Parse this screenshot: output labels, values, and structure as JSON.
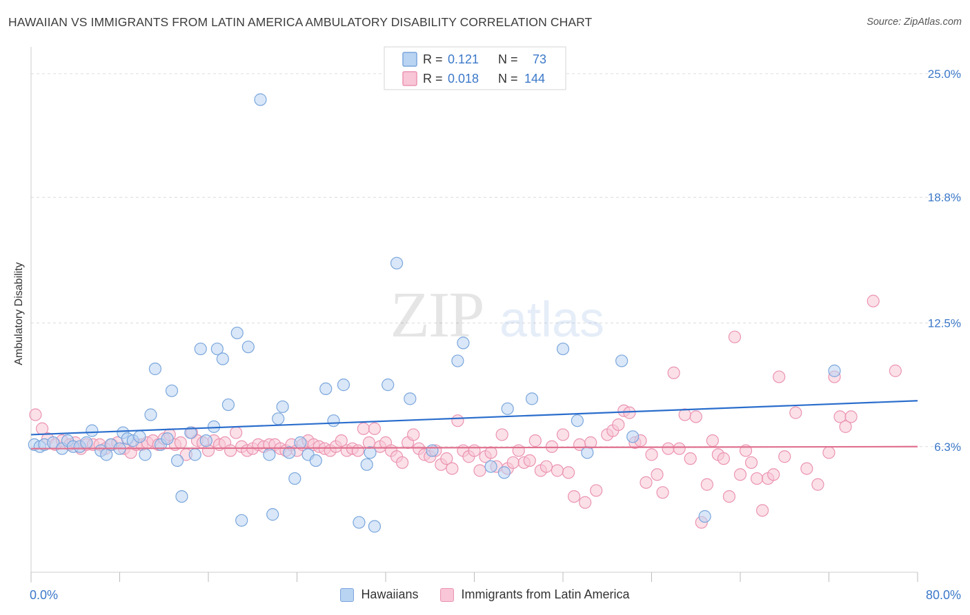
{
  "header": {
    "title": "HAWAIIAN VS IMMIGRANTS FROM LATIN AMERICA AMBULATORY DISABILITY CORRELATION CHART",
    "source": "Source: ZipAtlas.com"
  },
  "watermark": {
    "zip": "ZIP",
    "atlas": "atlas"
  },
  "colors": {
    "blue_fill": "#b9d3f2",
    "blue_stroke": "#7aa6dc",
    "blue_line": "#2a6dcc",
    "pink_fill": "#f8c6d6",
    "pink_stroke": "#eb93b0",
    "pink_line": "#e0708f",
    "axis_label": "#3b78c9",
    "grid": "#dcdcdc"
  },
  "chart_data": {
    "type": "scatter",
    "title": "HAWAIIAN VS IMMIGRANTS FROM LATIN AMERICA AMBULATORY DISABILITY CORRELATION CHART",
    "xlabel": "",
    "ylabel": "Ambulatory Disability",
    "xlim": [
      0,
      80
    ],
    "ylim": [
      0,
      26
    ],
    "x_tick_labels": [
      "0.0%",
      "80.0%"
    ],
    "y_ticks": [
      6.3,
      12.5,
      18.8,
      25.0
    ],
    "y_tick_labels": [
      "6.3%",
      "12.5%",
      "18.8%",
      "25.0%"
    ],
    "grid": "horizontal dashed",
    "legend": [
      {
        "series": "Hawaiians",
        "r_label": "R =",
        "r_value": "0.121",
        "n_label": "N =",
        "n_value": "73"
      },
      {
        "series": "Immigrants from Latin America",
        "r_label": "R =",
        "r_value": "0.018",
        "n_label": "N =",
        "n_value": "144"
      }
    ],
    "series": [
      {
        "name": "Hawaiians",
        "trend": {
          "x": [
            0,
            80
          ],
          "y": [
            6.9,
            8.6
          ]
        },
        "points": [
          [
            0.3,
            6.4
          ],
          [
            0.8,
            6.3
          ],
          [
            1.2,
            6.4
          ],
          [
            2,
            6.5
          ],
          [
            2.8,
            6.2
          ],
          [
            3.3,
            6.6
          ],
          [
            3.8,
            6.3
          ],
          [
            4.4,
            6.3
          ],
          [
            5,
            6.5
          ],
          [
            5.5,
            7.1
          ],
          [
            6.3,
            6.1
          ],
          [
            6.8,
            5.9
          ],
          [
            7.2,
            6.4
          ],
          [
            8,
            6.2
          ],
          [
            8.3,
            7
          ],
          [
            8.7,
            6.7
          ],
          [
            9.2,
            6.6
          ],
          [
            9.8,
            6.8
          ],
          [
            10.3,
            5.9
          ],
          [
            10.8,
            7.9
          ],
          [
            11.2,
            10.2
          ],
          [
            11.7,
            6.4
          ],
          [
            12.3,
            6.7
          ],
          [
            12.7,
            9.1
          ],
          [
            13.2,
            5.6
          ],
          [
            13.6,
            3.8
          ],
          [
            14.4,
            7
          ],
          [
            14.8,
            5.9
          ],
          [
            15.3,
            11.2
          ],
          [
            15.8,
            6.6
          ],
          [
            16.5,
            7.3
          ],
          [
            16.8,
            11.2
          ],
          [
            17.3,
            10.7
          ],
          [
            17.8,
            8.4
          ],
          [
            18.6,
            12
          ],
          [
            19,
            2.6
          ],
          [
            19.6,
            11.3
          ],
          [
            20.7,
            23.7
          ],
          [
            21.5,
            5.9
          ],
          [
            21.8,
            2.9
          ],
          [
            22.3,
            7.7
          ],
          [
            22.7,
            8.3
          ],
          [
            23.3,
            6
          ],
          [
            23.8,
            4.7
          ],
          [
            24.3,
            6.5
          ],
          [
            25,
            5.9
          ],
          [
            25.7,
            5.6
          ],
          [
            26.6,
            9.2
          ],
          [
            27.3,
            7.6
          ],
          [
            28.2,
            9.4
          ],
          [
            29.6,
            2.5
          ],
          [
            30.3,
            5.4
          ],
          [
            30.6,
            6
          ],
          [
            31,
            2.3
          ],
          [
            32.2,
            9.4
          ],
          [
            33,
            15.5
          ],
          [
            34.2,
            8.7
          ],
          [
            36.2,
            6.1
          ],
          [
            38.5,
            10.6
          ],
          [
            39,
            11.5
          ],
          [
            41.5,
            5.3
          ],
          [
            42.7,
            5
          ],
          [
            43,
            8.2
          ],
          [
            45.2,
            8.7
          ],
          [
            48,
            11.2
          ],
          [
            49.3,
            7.6
          ],
          [
            50.2,
            6
          ],
          [
            53.3,
            10.6
          ],
          [
            54.3,
            6.8
          ],
          [
            60.8,
            2.8
          ],
          [
            72.5,
            10.1
          ]
        ]
      },
      {
        "name": "Immigrants from Latin America",
        "trend": {
          "x": [
            0,
            80
          ],
          "y": [
            6.2,
            6.3
          ]
        },
        "points": [
          [
            0.4,
            7.9
          ],
          [
            1,
            7.2
          ],
          [
            1.5,
            6.7
          ],
          [
            2.2,
            6.4
          ],
          [
            2.8,
            6.6
          ],
          [
            3.5,
            6.4
          ],
          [
            4,
            6.5
          ],
          [
            4.5,
            6.2
          ],
          [
            5,
            6.4
          ],
          [
            5.6,
            6.4
          ],
          [
            6.2,
            6.4
          ],
          [
            6.7,
            6.2
          ],
          [
            7.3,
            6.4
          ],
          [
            7.8,
            6.5
          ],
          [
            8.4,
            6.2
          ],
          [
            9,
            6
          ],
          [
            9.5,
            6.4
          ],
          [
            10,
            6.4
          ],
          [
            10.5,
            6.5
          ],
          [
            11,
            6.6
          ],
          [
            11.5,
            6.4
          ],
          [
            12,
            6.7
          ],
          [
            12.5,
            6.9
          ],
          [
            13,
            6.4
          ],
          [
            13.5,
            6.5
          ],
          [
            14,
            5.9
          ],
          [
            14.5,
            7
          ],
          [
            15,
            6.6
          ],
          [
            15.5,
            6.5
          ],
          [
            16,
            6.1
          ],
          [
            16.5,
            6.6
          ],
          [
            17,
            6.4
          ],
          [
            17.5,
            6.5
          ],
          [
            18,
            6.1
          ],
          [
            18.5,
            7
          ],
          [
            19,
            6.3
          ],
          [
            19.5,
            6.1
          ],
          [
            20,
            6.2
          ],
          [
            20.5,
            6.4
          ],
          [
            21,
            6.3
          ],
          [
            21.5,
            6.4
          ],
          [
            22,
            6.4
          ],
          [
            22.5,
            6.2
          ],
          [
            23,
            6.1
          ],
          [
            23.5,
            6.4
          ],
          [
            24,
            6.1
          ],
          [
            24.5,
            6.4
          ],
          [
            25,
            6.6
          ],
          [
            25.5,
            6.4
          ],
          [
            26,
            6.3
          ],
          [
            26.5,
            6.2
          ],
          [
            27,
            6.1
          ],
          [
            27.5,
            6.3
          ],
          [
            28,
            6.6
          ],
          [
            28.5,
            6.1
          ],
          [
            29,
            6.2
          ],
          [
            29.5,
            6.1
          ],
          [
            30,
            7.2
          ],
          [
            30.5,
            6.5
          ],
          [
            31,
            7.2
          ],
          [
            31.5,
            6.3
          ],
          [
            32,
            6.5
          ],
          [
            32.5,
            6.1
          ],
          [
            33,
            5.8
          ],
          [
            33.5,
            5.5
          ],
          [
            34,
            6.5
          ],
          [
            34.5,
            6.9
          ],
          [
            35,
            6.2
          ],
          [
            35.5,
            5.9
          ],
          [
            36,
            5.8
          ],
          [
            36.5,
            6.1
          ],
          [
            37,
            5.4
          ],
          [
            37.5,
            5.7
          ],
          [
            38,
            5.2
          ],
          [
            38.5,
            7.6
          ],
          [
            39,
            6.1
          ],
          [
            39.5,
            5.8
          ],
          [
            40,
            6.1
          ],
          [
            40.5,
            5.1
          ],
          [
            41,
            5.8
          ],
          [
            41.5,
            6
          ],
          [
            42,
            5.3
          ],
          [
            42.5,
            6.9
          ],
          [
            43,
            5.2
          ],
          [
            43.5,
            5.5
          ],
          [
            44,
            6.1
          ],
          [
            44.5,
            5.5
          ],
          [
            45,
            5.6
          ],
          [
            45.5,
            6.6
          ],
          [
            46,
            5.1
          ],
          [
            46.5,
            5.3
          ],
          [
            47,
            6.3
          ],
          [
            47.5,
            5.1
          ],
          [
            48,
            6.9
          ],
          [
            48.5,
            5
          ],
          [
            49,
            3.8
          ],
          [
            49.5,
            6.4
          ],
          [
            50,
            3.5
          ],
          [
            50.5,
            6.5
          ],
          [
            51,
            4.1
          ],
          [
            52,
            6.9
          ],
          [
            52.5,
            7.1
          ],
          [
            53,
            7.4
          ],
          [
            53.5,
            8.1
          ],
          [
            54,
            8
          ],
          [
            54.5,
            6.5
          ],
          [
            55,
            6.6
          ],
          [
            55.5,
            4.5
          ],
          [
            56,
            5.9
          ],
          [
            56.5,
            4.9
          ],
          [
            57,
            4
          ],
          [
            57.5,
            6.2
          ],
          [
            58,
            10
          ],
          [
            58.5,
            6.2
          ],
          [
            59,
            7.9
          ],
          [
            59.5,
            5.7
          ],
          [
            60,
            7.8
          ],
          [
            60.5,
            2.5
          ],
          [
            61,
            4.4
          ],
          [
            61.5,
            6.6
          ],
          [
            62,
            5.9
          ],
          [
            62.5,
            5.7
          ],
          [
            63,
            3.8
          ],
          [
            63.5,
            11.8
          ],
          [
            64,
            4.9
          ],
          [
            64.5,
            6.1
          ],
          [
            65,
            5.5
          ],
          [
            65.5,
            4.7
          ],
          [
            66,
            3.1
          ],
          [
            66.5,
            4.7
          ],
          [
            67,
            4.9
          ],
          [
            67.5,
            9.8
          ],
          [
            68,
            5.8
          ],
          [
            69,
            8
          ],
          [
            70,
            5.2
          ],
          [
            71,
            4.4
          ],
          [
            72,
            6
          ],
          [
            72.5,
            9.8
          ],
          [
            73,
            7.8
          ],
          [
            73.5,
            7.3
          ],
          [
            74,
            7.8
          ],
          [
            76,
            13.6
          ],
          [
            78,
            10.1
          ]
        ]
      }
    ]
  }
}
